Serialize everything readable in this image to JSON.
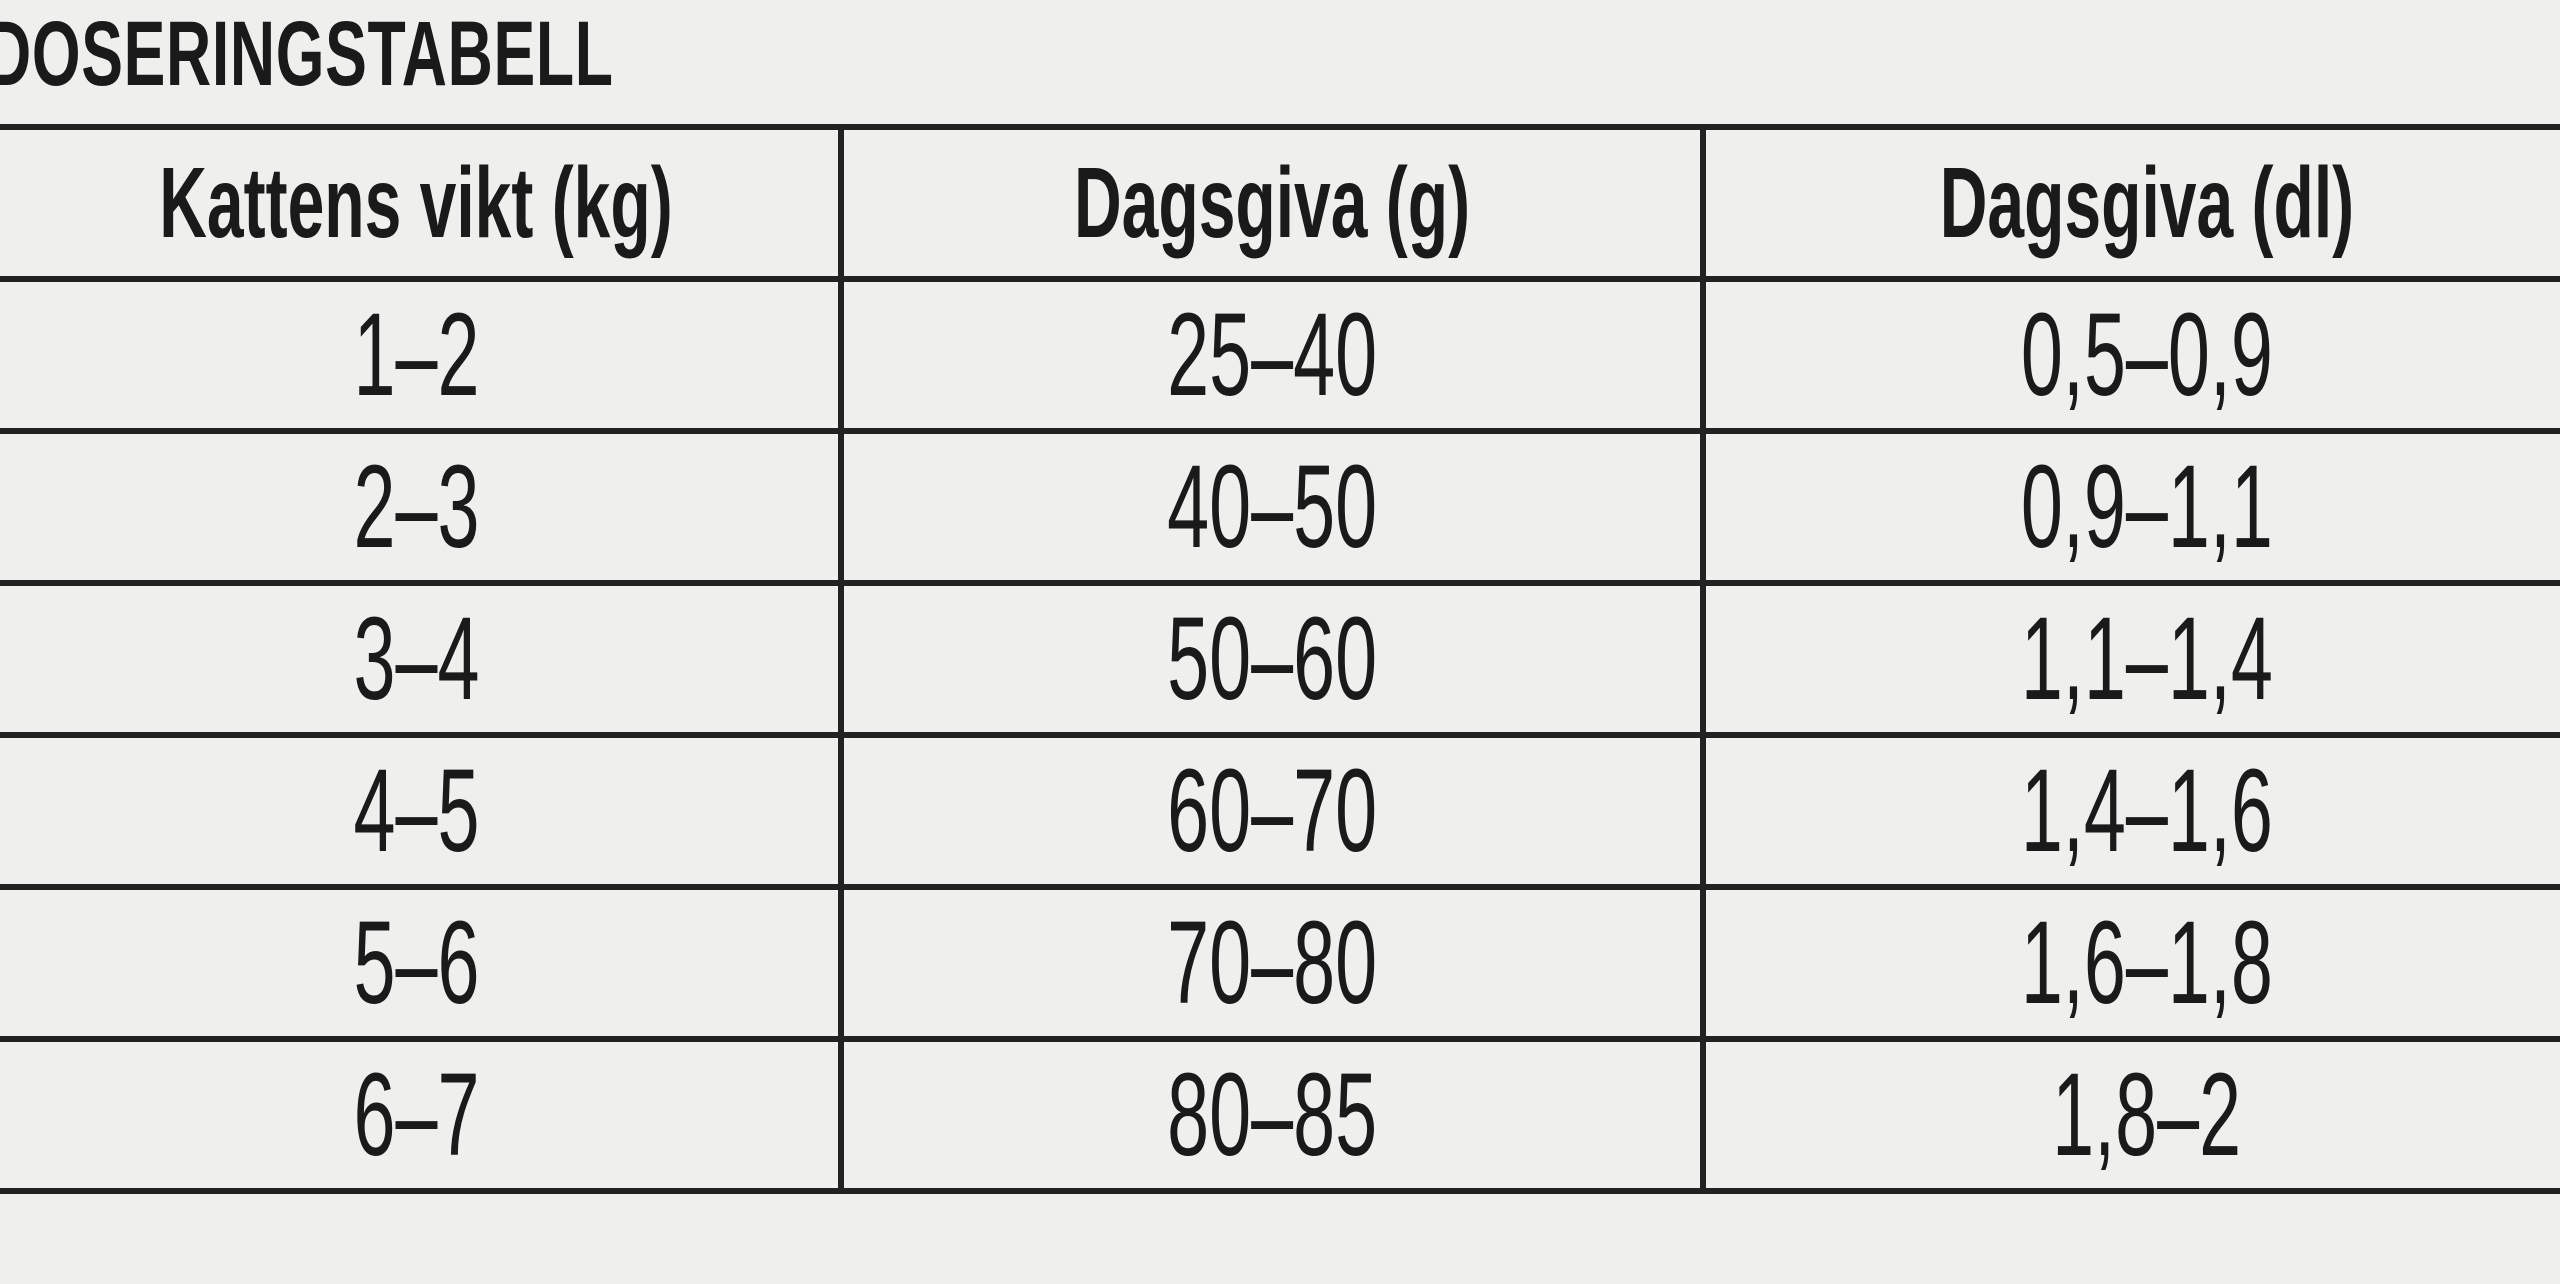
{
  "title": "DOSERINGSTABELL",
  "table": {
    "header": [
      "Kattens vikt (kg)",
      "Dagsgiva (g)",
      "Dagsgiva (dl)"
    ],
    "rows": [
      [
        "1–2",
        "25–40",
        "0,5–0,9"
      ],
      [
        "2–3",
        "40–50",
        "0,9–1,1"
      ],
      [
        "3–4",
        "50–60",
        "1,1–1,4"
      ],
      [
        "4–5",
        "60–70",
        "1,4–1,6"
      ],
      [
        "5–6",
        "70–80",
        "1,6–1,8"
      ],
      [
        "6–7",
        "80–85",
        "1,8–2"
      ]
    ]
  }
}
